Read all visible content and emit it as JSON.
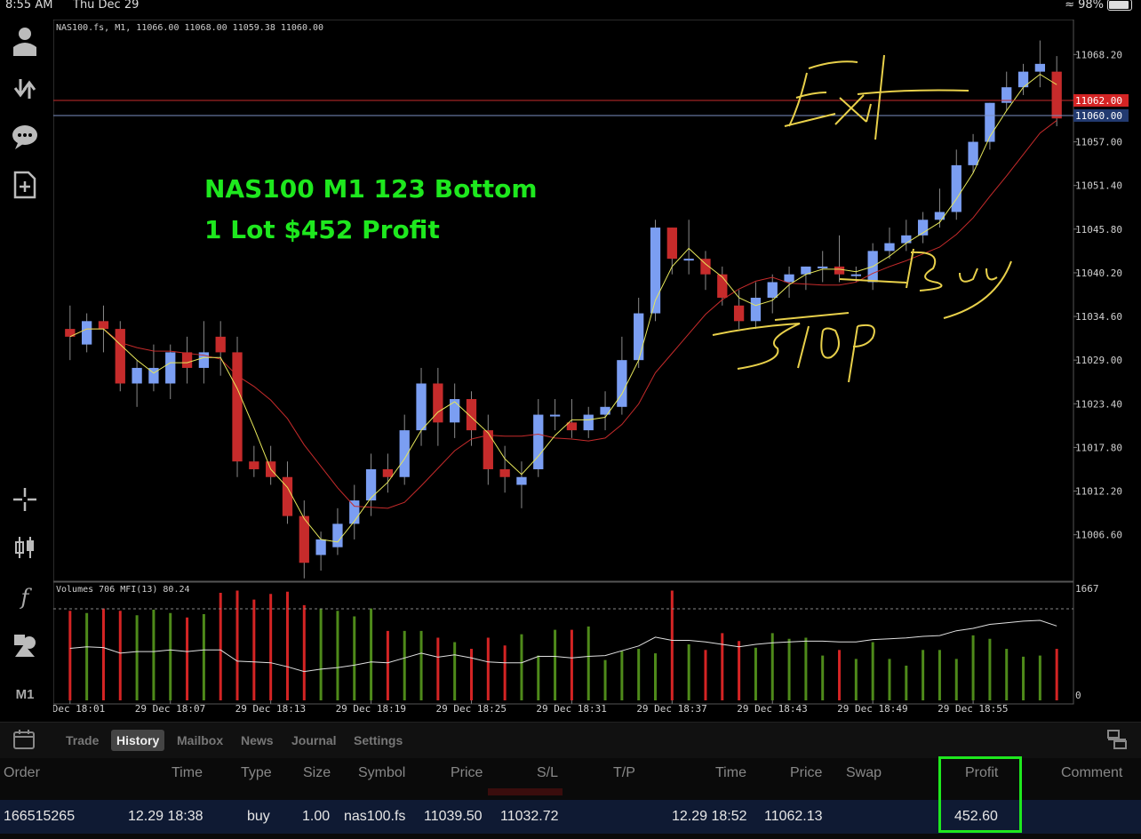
{
  "status_bar": {
    "time": "8:55 AM",
    "date": "Thu Dec 29",
    "battery": "98%"
  },
  "sidebar": {
    "items": [
      "person-icon",
      "transfer-icon",
      "chat-icon",
      "new-doc-icon",
      "crosshair-icon",
      "candles-icon",
      "function-icon",
      "objects-icon"
    ],
    "timeframe": "M1"
  },
  "chart": {
    "info": "NAS100.fs, M1, 11066.00 11068.00 11059.38 11060.00",
    "annotation_line1": "NAS100 M1 123 Bottom",
    "annotation_line2": "1 Lot $452 Profit",
    "price_labels": [
      "11068.20",
      "11062.00",
      "11060.00",
      "11057.00",
      "11051.40",
      "11045.80",
      "11040.20",
      "11034.60",
      "11029.00",
      "11023.40",
      "11017.80",
      "11012.20",
      "11006.60"
    ],
    "bid_price": "11062.00",
    "ask_price": "11060.00",
    "handwriting": {
      "exit": "Exit",
      "buy": "Buy",
      "stop": "Stop"
    },
    "volume_info": "Volumes 706 MFI(13) 80.24",
    "volume_max": "1667",
    "volume_min": "0",
    "time_labels": [
      "29 Dec 18:01",
      "29 Dec 18:07",
      "29 Dec 18:13",
      "29 Dec 18:19",
      "29 Dec 18:25",
      "29 Dec 18:31",
      "29 Dec 18:37",
      "29 Dec 18:43",
      "29 Dec 18:49",
      "29 Dec 18:55"
    ],
    "colors": {
      "bull": "#7b9ef2",
      "bear": "#c62b2b",
      "vol_up": "#4e8a1a",
      "vol_down": "#d42424",
      "annotation": "#1ee81e",
      "handwriting": "#e8d04a"
    }
  },
  "chart_data": {
    "type": "candlestick",
    "symbol": "NAS100.fs",
    "timeframe": "M1",
    "ylim": [
      11002,
      11072
    ],
    "candles": [
      [
        11033,
        11036,
        11029,
        11032
      ],
      [
        11031,
        11035,
        11030,
        11034
      ],
      [
        11034,
        11036,
        11030,
        11033
      ],
      [
        11033,
        11034,
        11025,
        11026
      ],
      [
        11026,
        11029,
        11023,
        11028
      ],
      [
        11026,
        11031,
        11025,
        11028
      ],
      [
        11026,
        11031,
        11024,
        11030
      ],
      [
        11030,
        11032,
        11026,
        11028
      ],
      [
        11028,
        11034,
        11026,
        11030
      ],
      [
        11032,
        11034,
        11027,
        11030
      ],
      [
        11030,
        11032,
        11014,
        11016
      ],
      [
        11016,
        11018,
        11014,
        11015
      ],
      [
        11016,
        11018,
        11013,
        11014
      ],
      [
        11014,
        11016,
        11008,
        11009
      ],
      [
        11009,
        11011,
        11001,
        11003
      ],
      [
        11004,
        11007,
        11002,
        11006
      ],
      [
        11005,
        11010,
        11004,
        11008
      ],
      [
        11008,
        11013,
        11006,
        11011
      ],
      [
        11011,
        11017,
        11009,
        11015
      ],
      [
        11015,
        11017,
        11012,
        11014
      ],
      [
        11014,
        11022,
        11013,
        11020
      ],
      [
        11020,
        11028,
        11018,
        11026
      ],
      [
        11026,
        11028,
        11018,
        11021
      ],
      [
        11021,
        11026,
        11019,
        11024
      ],
      [
        11024,
        11025,
        11018,
        11020
      ],
      [
        11020,
        11022,
        11013,
        11015
      ],
      [
        11015,
        11018,
        11012,
        11014
      ],
      [
        11013,
        11016,
        11010,
        11014
      ],
      [
        11015,
        11024,
        11014,
        11022
      ],
      [
        11022,
        11024,
        11020,
        11022
      ],
      [
        11021,
        11024,
        11019,
        11020
      ],
      [
        11020,
        11023,
        11019,
        11022
      ],
      [
        11022,
        11025,
        11020,
        11023
      ],
      [
        11023,
        11032,
        11022,
        11029
      ],
      [
        11029,
        11037,
        11028,
        11035
      ],
      [
        11035,
        11047,
        11034,
        11046
      ],
      [
        11046,
        11046,
        11040,
        11042
      ],
      [
        11042,
        11047,
        11040,
        11042
      ],
      [
        11042,
        11043,
        11038,
        11040
      ],
      [
        11040,
        11041,
        11036,
        11037
      ],
      [
        11036,
        11038,
        11033,
        11034
      ],
      [
        11034,
        11039,
        11033,
        11037
      ],
      [
        11037,
        11040,
        11035,
        11039
      ],
      [
        11039,
        11041,
        11037,
        11040
      ],
      [
        11040,
        11041,
        11038,
        11041
      ],
      [
        11041,
        11043,
        11039,
        11041
      ],
      [
        11041,
        11045,
        11039,
        11040
      ],
      [
        11040,
        11041,
        11039,
        11040
      ],
      [
        11039,
        11044,
        11038,
        11043
      ],
      [
        11043,
        11046,
        11042,
        11044
      ],
      [
        11044,
        11047,
        11043,
        11045
      ],
      [
        11045,
        11048,
        11044,
        11047
      ],
      [
        11047,
        11051,
        11046,
        11048
      ],
      [
        11048,
        11056,
        11047,
        11054
      ],
      [
        11054,
        11058,
        11053,
        11057
      ],
      [
        11057,
        11062,
        11056,
        11062
      ],
      [
        11062,
        11066,
        11061,
        11064
      ],
      [
        11064,
        11067,
        11063,
        11066
      ],
      [
        11066,
        11070,
        11064,
        11067
      ],
      [
        11066,
        11068,
        11059,
        11060
      ]
    ],
    "volumes": [
      0.8,
      0.78,
      0.82,
      0.8,
      0.76,
      0.81,
      0.78,
      0.74,
      0.77,
      0.96,
      0.98,
      0.9,
      0.95,
      0.97,
      0.85,
      0.82,
      0.8,
      0.75,
      0.82,
      0.62,
      0.62,
      0.62,
      0.56,
      0.52,
      0.46,
      0.56,
      0.49,
      0.59,
      0.4,
      0.63,
      0.63,
      0.66,
      0.36,
      0.44,
      0.46,
      0.42,
      0.98,
      0.5,
      0.45,
      0.6,
      0.53,
      0.47,
      0.6,
      0.55,
      0.56,
      0.4,
      0.45,
      0.37,
      0.52,
      0.37,
      0.31,
      0.45,
      0.45,
      0.37,
      0.58,
      0.55,
      0.46,
      0.39,
      0.4,
      0.46
    ]
  },
  "tabs": [
    "Trade",
    "History",
    "Mailbox",
    "News",
    "Journal",
    "Settings"
  ],
  "active_tab": "History",
  "history": {
    "headers": [
      "Order",
      "Time",
      "Type",
      "Size",
      "Symbol",
      "Price",
      "S/L",
      "T/P",
      "Time",
      "Price",
      "Swap",
      "Profit",
      "Comment"
    ],
    "row": {
      "order": "166515265",
      "open_time": "12.29 18:38",
      "type": "buy",
      "size": "1.00",
      "symbol": "nas100.fs",
      "open_price": "11039.50",
      "sl": "11032.72",
      "tp": "",
      "close_time": "12.29 18:52",
      "close_price": "11062.13",
      "swap": "",
      "profit": "452.60",
      "comment": ""
    }
  }
}
